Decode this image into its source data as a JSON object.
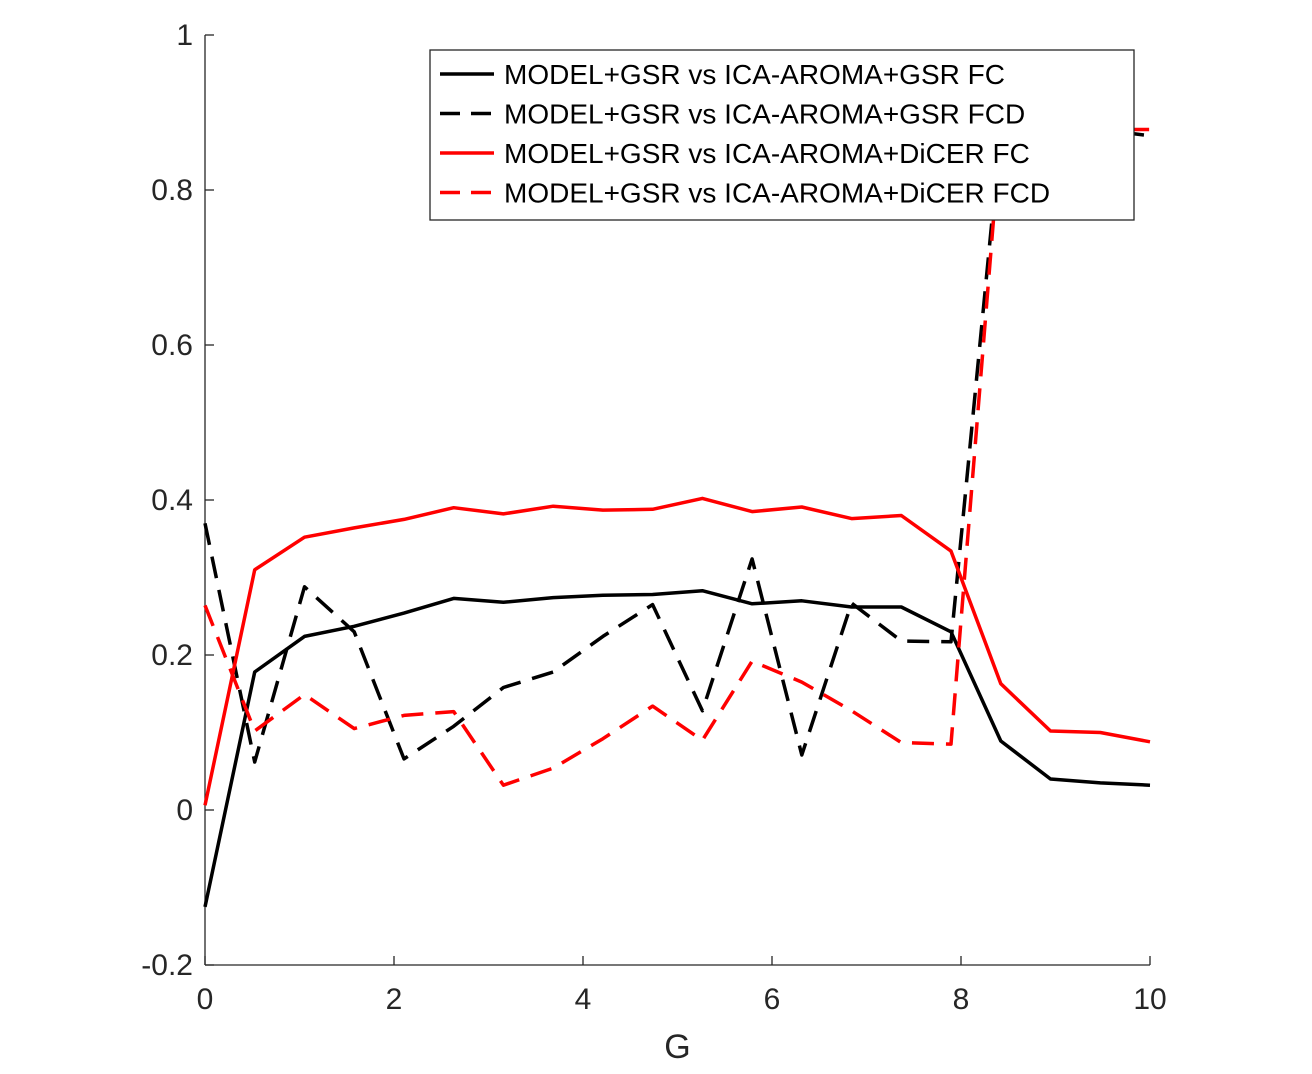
{
  "chart_data": {
    "type": "line",
    "xlabel": "G",
    "ylabel": "",
    "xlim": [
      0,
      10
    ],
    "ylim": [
      -0.2,
      1
    ],
    "xticks": [
      "0",
      "2",
      "4",
      "6",
      "8",
      "10"
    ],
    "yticks": [
      "-0.2",
      "0",
      "0.2",
      "0.4",
      "0.6",
      "0.8",
      "1"
    ],
    "grid": false,
    "legend_position": "top-right",
    "x": [
      0,
      0.5263,
      1.0526,
      1.5789,
      2.1053,
      2.6316,
      3.1579,
      3.6842,
      4.2105,
      4.7368,
      5.2632,
      5.7895,
      6.3158,
      6.8421,
      7.3684,
      7.8947,
      8.4211,
      8.9474,
      9.4737,
      10
    ],
    "series": [
      {
        "name": "MODEL+GSR vs ICA-AROMA+GSR FC",
        "color": "#000000",
        "dash": "solid",
        "values": [
          -0.125,
          0.178,
          0.224,
          0.237,
          0.254,
          0.273,
          0.268,
          0.274,
          0.277,
          0.278,
          0.283,
          0.266,
          0.27,
          0.262,
          0.262,
          0.23,
          0.089,
          0.04,
          0.035,
          0.032
        ]
      },
      {
        "name": "MODEL+GSR vs ICA-AROMA+GSR FCD",
        "color": "#000000",
        "dash": "dashed",
        "values": [
          0.37,
          0.062,
          0.288,
          0.23,
          0.066,
          0.108,
          0.158,
          0.178,
          0.224,
          0.265,
          0.128,
          0.324,
          0.071,
          0.267,
          0.218,
          0.217,
          0.878,
          0.878,
          0.878,
          0.87
        ]
      },
      {
        "name": "MODEL+GSR vs ICA-AROMA+DiCER FC",
        "color": "#ff0000",
        "dash": "solid",
        "values": [
          0.006,
          0.31,
          0.352,
          0.364,
          0.375,
          0.39,
          0.382,
          0.392,
          0.387,
          0.388,
          0.402,
          0.385,
          0.391,
          0.376,
          0.38,
          0.334,
          0.163,
          0.102,
          0.1,
          0.088
        ]
      },
      {
        "name": "MODEL+GSR vs ICA-AROMA+DiCER FCD",
        "color": "#ff0000",
        "dash": "dashed",
        "values": [
          0.264,
          0.102,
          0.149,
          0.105,
          0.122,
          0.127,
          0.032,
          0.054,
          0.092,
          0.134,
          0.09,
          0.192,
          0.165,
          0.128,
          0.087,
          0.085,
          0.878,
          0.878,
          0.878,
          0.878
        ]
      }
    ]
  }
}
